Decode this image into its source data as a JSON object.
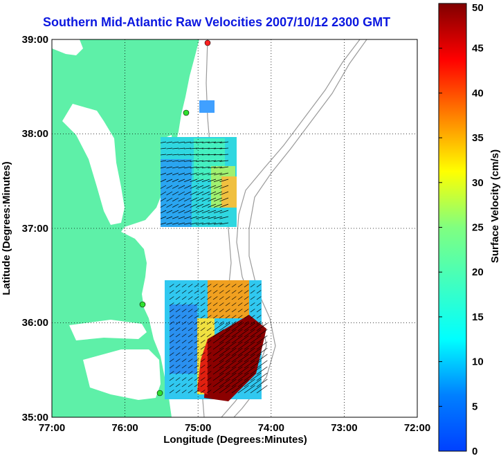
{
  "title": "Southern Mid-Atlantic Raw Velocities 2007/10/12 2300 GMT",
  "x_axis": {
    "label": "Longitude (Degrees:Minutes)",
    "ticks": [
      "77:00",
      "76:00",
      "75:00",
      "74:00",
      "73:00",
      "72:00"
    ]
  },
  "y_axis": {
    "label": "Latitude (Degrees:Minutes)",
    "ticks": [
      "39:00",
      "38:00",
      "37:00",
      "36:00",
      "35:00"
    ]
  },
  "colorbar": {
    "label": "Surface Velocity (cm/s)",
    "ticks": [
      "0",
      "5",
      "10",
      "15",
      "20",
      "25",
      "30",
      "35",
      "40",
      "45",
      "50"
    ],
    "min": 0,
    "max": 50,
    "colormap": "jet"
  },
  "map": {
    "lon_range": [
      -77,
      -72
    ],
    "lat_range": [
      35,
      39
    ],
    "land_color": "#5ef0a8",
    "grid": "dotted"
  }
}
